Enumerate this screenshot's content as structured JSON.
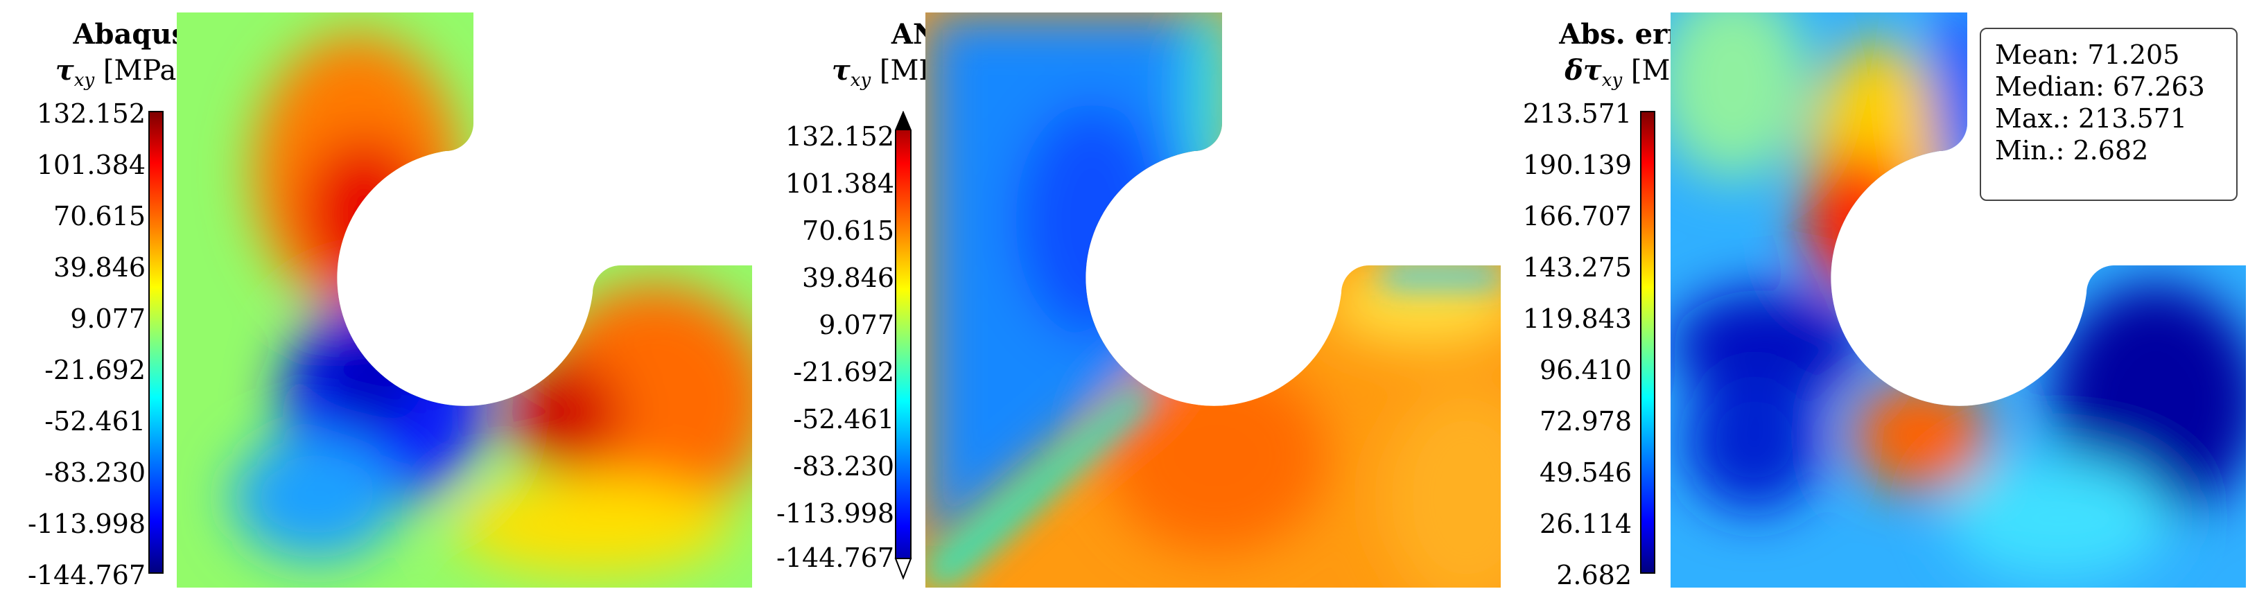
{
  "panels": [
    {
      "title": "Abaqus",
      "quantity_symbol": "τ",
      "quantity_sub": "xy",
      "quantity_unit": "[MPa]",
      "ticks": [
        "132.152",
        "101.384",
        "70.615",
        "39.846",
        "9.077",
        "-21.692",
        "-52.461",
        "-83.230",
        "-113.998",
        "-144.767"
      ]
    },
    {
      "title": "ANN",
      "quantity_symbol": "τ",
      "quantity_sub": "xy",
      "quantity_unit": "[MPa]",
      "ticks": [
        "132.152",
        "101.384",
        "70.615",
        "39.846",
        "9.077",
        "-21.692",
        "-52.461",
        "-83.230",
        "-113.998",
        "-144.767"
      ]
    },
    {
      "title": "Abs. error",
      "quantity_symbol": "δτ",
      "quantity_sub": "xy",
      "quantity_unit": "[MPa]",
      "ticks": [
        "213.571",
        "190.139",
        "166.707",
        "143.275",
        "119.843",
        "96.410",
        "72.978",
        "49.546",
        "26.114",
        "2.682"
      ],
      "stats": {
        "mean": "Mean: 71.205",
        "median": "Median: 67.263",
        "max": "Max.: 213.571",
        "min": "Min.: 2.682"
      }
    }
  ],
  "colors": {
    "jet_low": "#00007f",
    "jet_mid": "#7fff7f",
    "jet_high": "#7f0000"
  }
}
